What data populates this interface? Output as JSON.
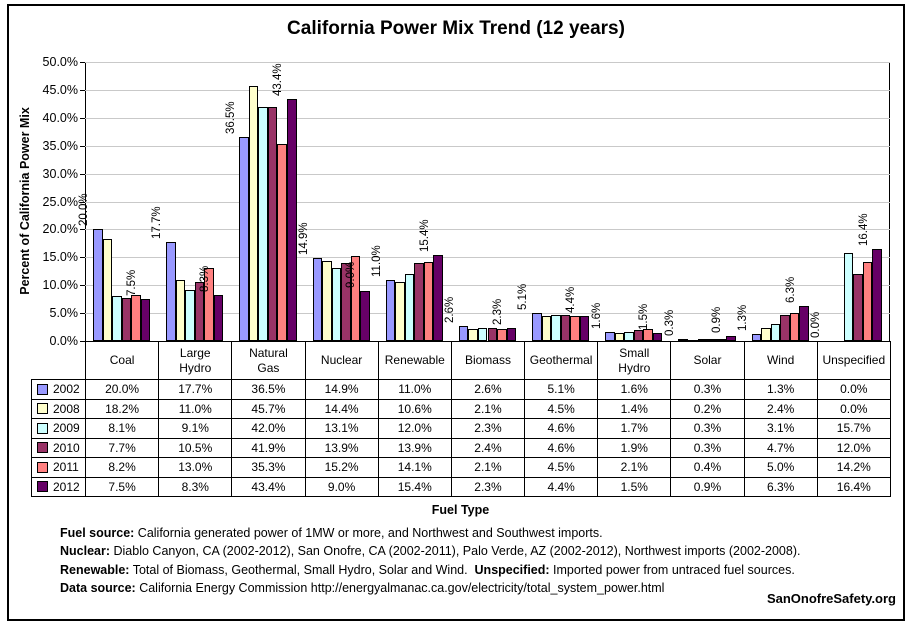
{
  "watermark": "SanOnofreSafety.org",
  "chart_data": {
    "type": "bar",
    "title": "California Power Mix Trend (12 years)",
    "xlabel": "Fuel Type",
    "ylabel": "Percent of California Power Mix",
    "ylim": [
      0,
      50
    ],
    "ytick_step": 5,
    "ytick_labels": [
      "0.0%",
      "5.0%",
      "10.0%",
      "15.0%",
      "20.0%",
      "25.0%",
      "30.0%",
      "35.0%",
      "40.0%",
      "45.0%",
      "50.0%"
    ],
    "grid": true,
    "legend_position": "data-table-left-column",
    "value_format": "0.0%",
    "bar_value_labels_on_series": [
      "2002",
      "2012"
    ],
    "categories": [
      "Coal",
      "Large Hydro",
      "Natural Gas",
      "Nuclear",
      "Renewable",
      "Biomass",
      "Geothermal",
      "Small Hydro",
      "Solar",
      "Wind",
      "Unspecified"
    ],
    "series": [
      {
        "name": "2002",
        "color": "#9999FF",
        "values": [
          20.0,
          17.7,
          36.5,
          14.9,
          11.0,
          2.6,
          5.1,
          1.6,
          0.3,
          1.3,
          0.0
        ]
      },
      {
        "name": "2008",
        "color": "#FFFFCC",
        "values": [
          18.2,
          11.0,
          45.7,
          14.4,
          10.6,
          2.1,
          4.5,
          1.4,
          0.2,
          2.4,
          0.0
        ]
      },
      {
        "name": "2009",
        "color": "#CCFFFF",
        "values": [
          8.1,
          9.1,
          42.0,
          13.1,
          12.0,
          2.3,
          4.6,
          1.7,
          0.3,
          3.1,
          15.7
        ]
      },
      {
        "name": "2010",
        "color": "#993366",
        "values": [
          7.7,
          10.5,
          41.9,
          13.9,
          13.9,
          2.4,
          4.6,
          1.9,
          0.3,
          4.7,
          12.0
        ]
      },
      {
        "name": "2011",
        "color": "#FF8080",
        "values": [
          8.2,
          13.0,
          35.3,
          15.2,
          14.1,
          2.1,
          4.5,
          2.1,
          0.4,
          5.0,
          14.2
        ]
      },
      {
        "name": "2012",
        "color": "#660066",
        "values": [
          7.5,
          8.3,
          43.4,
          9.0,
          15.4,
          2.3,
          4.4,
          1.5,
          0.9,
          6.3,
          16.4
        ]
      }
    ],
    "table_col_headers": [
      "Coal",
      "Large\nHydro",
      "Natural\nGas",
      "Nuclear",
      "Renewable",
      "Biomass",
      "Geothermal",
      "Small\nHydro",
      "Solar",
      "Wind",
      "Unspecified"
    ]
  },
  "footnotes": [
    {
      "segments": [
        {
          "b": "Fuel source:"
        },
        {
          "t": " California generated power of 1MW or more, and Northwest and Southwest imports."
        }
      ]
    },
    {
      "segments": [
        {
          "b": "Nuclear:"
        },
        {
          "t": " Diablo Canyon, CA (2002-2012), San Onofre, CA (2002-2011), Palo Verde, AZ (2002-2012), Northwest imports (2002-2008)."
        }
      ]
    },
    {
      "segments": [
        {
          "b": "Renewable:"
        },
        {
          "t": " Total of Biomass, Geothermal, Small Hydro, Solar and Wind.  "
        },
        {
          "b": "Unspecified:"
        },
        {
          "t": " Imported power from untraced fuel sources."
        }
      ]
    },
    {
      "segments": [
        {
          "b": "Data source:"
        },
        {
          "t": " California Energy Commission http://energyalmanac.ca.gov/electricity/total_system_power.html"
        }
      ]
    }
  ]
}
